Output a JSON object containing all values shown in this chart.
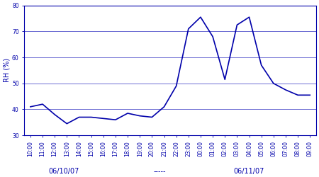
{
  "x_labels": [
    "10:00",
    "11:00",
    "12:00",
    "13:00",
    "14:00",
    "15:00",
    "16:00",
    "17:00",
    "18:00",
    "19:00",
    "20:00",
    "21:00",
    "22:00",
    "23:00",
    "00:00",
    "01:00",
    "02:00",
    "03:00",
    "04:00",
    "05:00",
    "06:00",
    "07:00",
    "08:00",
    "09:00"
  ],
  "y_values": [
    41,
    42,
    38,
    34.5,
    37,
    37,
    36.5,
    36,
    38.5,
    37.5,
    37,
    41,
    49,
    71,
    75.5,
    68,
    51.5,
    72.5,
    75.5,
    57,
    50,
    47.5,
    45.5,
    45.5
  ],
  "ylim": [
    30,
    80
  ],
  "yticks": [
    30,
    40,
    50,
    60,
    70,
    80
  ],
  "ylabel": "RH (%)",
  "date1": "06/10/07",
  "date2": "06/11/07",
  "separator": "-----",
  "line_color": "#0000aa",
  "bg_color": "#ffffff",
  "grid_color": "#5555cc",
  "line_width": 1.2,
  "tick_fontsize": 5.5,
  "ylabel_fontsize": 7,
  "date_fontsize": 7
}
